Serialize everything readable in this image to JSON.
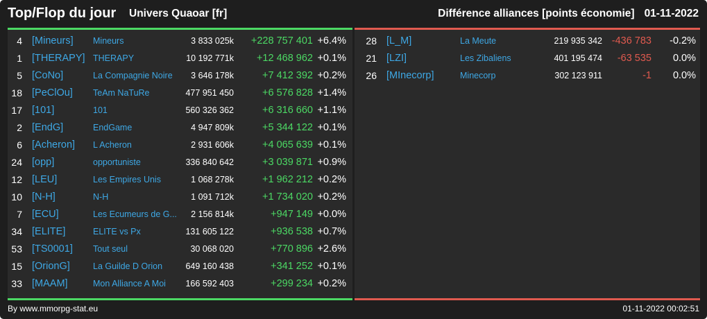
{
  "header": {
    "title": "Top/Flop du jour",
    "subtitle": "Univers Quaoar [fr]",
    "right_title": "Différence alliances [points économie]",
    "date": "01-11-2022"
  },
  "colors": {
    "background": "#1e1e1e",
    "panel": "#2a2a2a",
    "link": "#3ea8e5",
    "gain": "#4cd964",
    "loss": "#e05a4f"
  },
  "top": {
    "rows": [
      {
        "rank": "4",
        "tag": "[Mineurs]",
        "name": "Mineurs",
        "points": "3 833 025k",
        "diff": "+228 757 401",
        "pct": "+6.4%"
      },
      {
        "rank": "1",
        "tag": "[THERAPY]",
        "name": "THERAPY",
        "points": "10 192 771k",
        "diff": "+12 468 962",
        "pct": "+0.1%"
      },
      {
        "rank": "5",
        "tag": "[CoNo]",
        "name": "La Compagnie Noire",
        "points": "3 646 178k",
        "diff": "+7 412 392",
        "pct": "+0.2%"
      },
      {
        "rank": "18",
        "tag": "[PeClOu]",
        "name": "TeAm NaTuRe",
        "points": "477 951 450",
        "diff": "+6 576 828",
        "pct": "+1.4%"
      },
      {
        "rank": "17",
        "tag": "[101]",
        "name": "101",
        "points": "560 326 362",
        "diff": "+6 316 660",
        "pct": "+1.1%"
      },
      {
        "rank": "2",
        "tag": "[EndG]",
        "name": "EndGame",
        "points": "4 947 809k",
        "diff": "+5 344 122",
        "pct": "+0.1%"
      },
      {
        "rank": "6",
        "tag": "[Acheron]",
        "name": "L Acheron",
        "points": "2 931 606k",
        "diff": "+4 065 639",
        "pct": "+0.1%"
      },
      {
        "rank": "24",
        "tag": "[opp]",
        "name": "opportuniste",
        "points": "336 840 642",
        "diff": "+3 039 871",
        "pct": "+0.9%"
      },
      {
        "rank": "12",
        "tag": "[LEU]",
        "name": "Les Empires Unis",
        "points": "1 068 278k",
        "diff": "+1 962 212",
        "pct": "+0.2%"
      },
      {
        "rank": "10",
        "tag": "[N-H]",
        "name": "N-H",
        "points": "1 091 712k",
        "diff": "+1 734 020",
        "pct": "+0.2%"
      },
      {
        "rank": "7",
        "tag": "[ECU]",
        "name": "Les Ecumeurs de G...",
        "points": "2 156 814k",
        "diff": "+947 149",
        "pct": "+0.0%"
      },
      {
        "rank": "34",
        "tag": "[ELITE]",
        "name": "ELITE vs Px",
        "points": "131 605 122",
        "diff": "+936 538",
        "pct": "+0.7%"
      },
      {
        "rank": "53",
        "tag": "[TS0001]",
        "name": "Tout seul",
        "points": "30 068 020",
        "diff": "+770 896",
        "pct": "+2.6%"
      },
      {
        "rank": "15",
        "tag": "[OrionG]",
        "name": "La Guilde D Orion",
        "points": "649 160 438",
        "diff": "+341 252",
        "pct": "+0.1%"
      },
      {
        "rank": "33",
        "tag": "[MAAM]",
        "name": "Mon Alliance A Moi",
        "points": "166 592 403",
        "diff": "+299 234",
        "pct": "+0.2%"
      }
    ]
  },
  "flop": {
    "rows": [
      {
        "rank": "28",
        "tag": "[L_M]",
        "name": "La Meute",
        "points": "219 935 342",
        "diff": "-436 783",
        "pct": "-0.2%"
      },
      {
        "rank": "21",
        "tag": "[LZI]",
        "name": "Les Zibaliens",
        "points": "401 195 474",
        "diff": "-63 535",
        "pct": "0.0%"
      },
      {
        "rank": "26",
        "tag": "[MInecorp]",
        "name": "Minecorp",
        "points": "302 123 911",
        "diff": "-1",
        "pct": "0.0%"
      }
    ]
  },
  "footer": {
    "source": "By www.mmorpg-stat.eu",
    "timestamp": "01-11-2022 00:02:51"
  }
}
